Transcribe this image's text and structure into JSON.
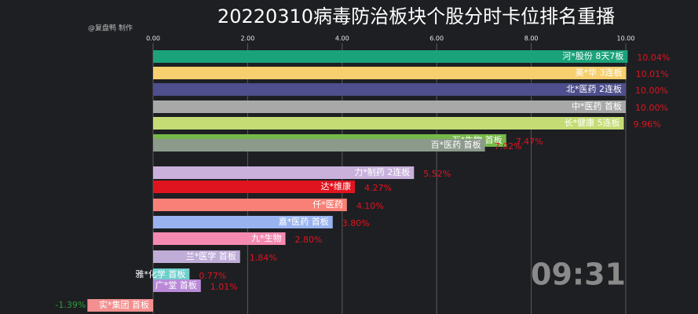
{
  "chart_data": {
    "type": "bar",
    "orientation": "horizontal",
    "title": "20220310病毒防治板块个股分时卡位排名重播",
    "watermark": "@复盘鸭 制作",
    "time_label": "09:31",
    "categories": [
      "河*股份  8天7板",
      "美*华  3连板",
      "北*医药  2连板",
      "中*医药  首板",
      "长*健康  5连板",
      "万*生物  首板",
      "百*医药  首板",
      "力*制药  2连板",
      "达*维康",
      "仟*医药",
      "嘉*医药  首板",
      "九*生物",
      "兰*医学  首板",
      "雅*化学  首板",
      "广*堂  首板",
      "实*集团  首板"
    ],
    "values": [
      10.04,
      10.01,
      10.0,
      10.0,
      9.96,
      7.47,
      7.02,
      5.52,
      4.27,
      4.1,
      3.8,
      2.8,
      1.84,
      0.77,
      1.01,
      -1.39
    ],
    "value_labels": [
      "10.04%",
      "10.01%",
      "10.00%",
      "10.00%",
      "9.96%",
      "7.47%",
      "7.02%",
      "5.52%",
      "4.27%",
      "4.10%",
      "3.80%",
      "2.80%",
      "1.84%",
      "0.77%",
      "1.01%",
      "-1.39%"
    ],
    "colors": [
      "#1aa37a",
      "#f7cf6e",
      "#4e4f8c",
      "#a8a8a8",
      "#c5dc74",
      "#76b84a",
      "#8c9a8c",
      "#c9b1dc",
      "#e0141e",
      "#f98076",
      "#98b3ef",
      "#f58ab0",
      "#bfadd8",
      "#6fcfcc",
      "#b98ad8",
      "#f28f8f"
    ],
    "positive_label_color": "#e0141e",
    "negative_label_color": "#2e9e3a",
    "xlim": [
      0,
      10
    ],
    "xticks": [
      {
        "value": 0,
        "label": "0.00"
      },
      {
        "value": 2,
        "label": "2.00"
      },
      {
        "value": 4,
        "label": "4.00"
      },
      {
        "value": 6,
        "label": "6.00"
      },
      {
        "value": 8,
        "label": "8.00"
      },
      {
        "value": 10,
        "label": "10.00"
      }
    ],
    "grid": true
  }
}
